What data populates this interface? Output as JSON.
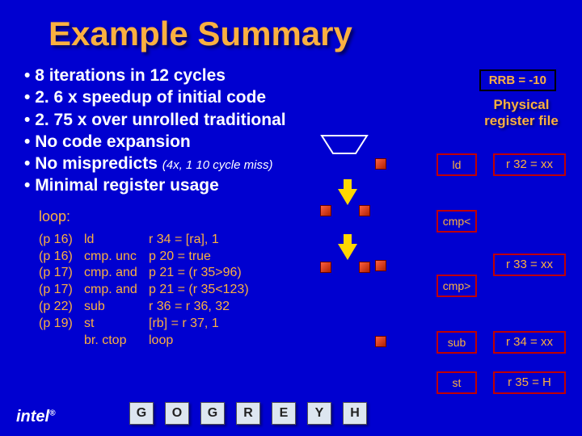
{
  "title": "Example Summary",
  "bullets": [
    "8 iterations in 12 cycles",
    "2. 6 x speedup of initial code",
    "2. 75 x over unrolled traditional",
    "No code expansion",
    "No mispredicts",
    "Minimal register usage"
  ],
  "bullet_sub": "(4x, 1 10 cycle miss)",
  "loop_label": "loop:",
  "code": [
    {
      "p": "(p 16)",
      "op": "ld",
      "arg": "r 34 = [ra], 1"
    },
    {
      "p": "(p 16)",
      "op": "cmp. unc",
      "arg": "p 20 = true"
    },
    {
      "p": "(p 17)",
      "op": "cmp. and",
      "arg": "p 21 = (r 35>96)"
    },
    {
      "p": "(p 17)",
      "op": "cmp. and",
      "arg": "p 21 = (r 35<123)"
    },
    {
      "p": "(p 22)",
      "op": "sub",
      "arg": "r 36 = r 36, 32"
    },
    {
      "p": "(p 19)",
      "op": "st",
      "arg": "[rb] = r 37, 1"
    },
    {
      "p": "",
      "op": "br. ctop",
      "arg": "loop"
    }
  ],
  "rrb": "RRB = -10",
  "phys_label": "Physical register file",
  "ops": [
    "ld",
    "cmp<",
    "cmp>",
    "sub",
    "st"
  ],
  "regs": [
    "r 32 = xx",
    "r 33 = xx",
    "r 34 = xx",
    "r 35 = H"
  ],
  "bottom": [
    "G",
    "O",
    "G",
    "R",
    "E",
    "Y",
    "H"
  ],
  "logo": "intel",
  "colors": {
    "bg": "#0000d0",
    "accent": "#fbb040",
    "border": "#c00000",
    "arrow": "#ffd700",
    "box_bg": "#dde6f0"
  },
  "layout": {
    "op_tops": [
      190,
      260,
      340,
      410,
      460
    ],
    "reg_tops": [
      190,
      314,
      410,
      460
    ]
  }
}
